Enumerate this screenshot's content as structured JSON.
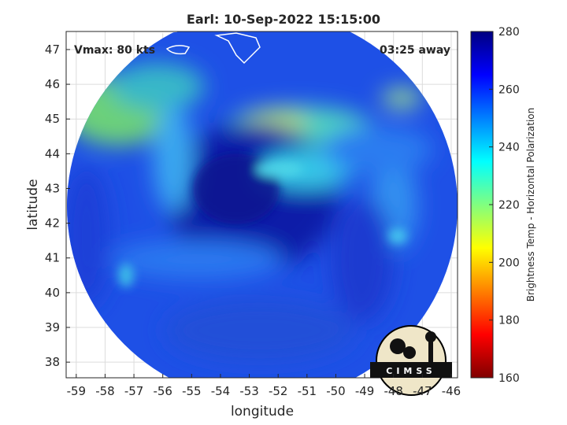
{
  "chart_data": {
    "type": "image",
    "title": "Earl: 10-Sep-2022 15:15:00",
    "annotations": [
      "Vmax: 80 kts",
      "03:25 away"
    ],
    "x_label": "longitude",
    "y_label": "latitude",
    "xlim": [
      -59.35,
      -45.78
    ],
    "xticks": [
      -59,
      -58,
      -57,
      -56,
      -55,
      -54,
      -53,
      -52,
      -51,
      -50,
      -49,
      -48,
      -47,
      -46
    ],
    "ylim": [
      37.55,
      47.52
    ],
    "yticks": [
      38,
      39,
      40,
      41,
      42,
      43,
      44,
      45,
      46,
      47
    ],
    "grid": true,
    "colorbar": {
      "label": "Brightness Temp - Horizontal Polarization",
      "lim": [
        160,
        280
      ],
      "ticks": [
        160,
        180,
        200,
        220,
        240,
        260,
        280
      ],
      "colormap": [
        "#800000",
        "#ff0000",
        "#ff8000",
        "#ffff00",
        "#80ff80",
        "#00ffff",
        "#0080ff",
        "#0000ff",
        "#000080"
      ]
    },
    "logo": "CIMSS"
  }
}
